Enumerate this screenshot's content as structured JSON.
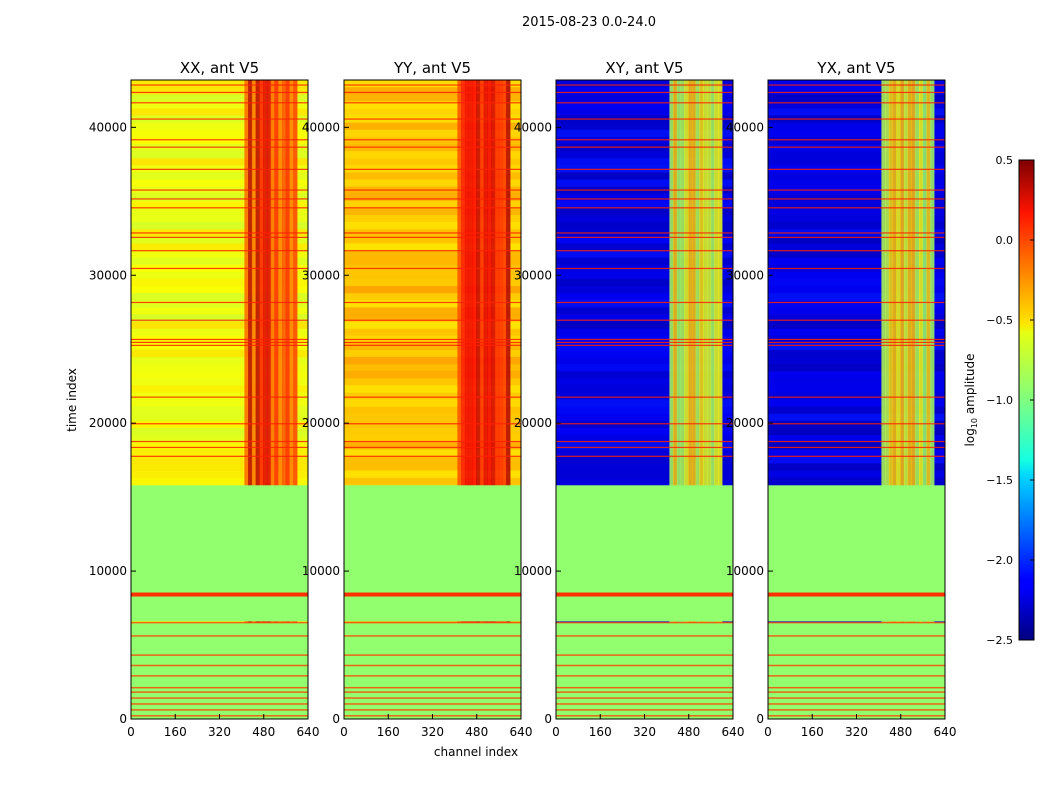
{
  "suptitle": "2015-08-23 0.0-24.0",
  "xlabel": "channel index",
  "ylabel": "time index",
  "colorbar": {
    "label": "log",
    "label_sub": "10",
    "label_rest": " amplitude",
    "min": -2.5,
    "max": 0.5,
    "ticks": [
      "0.5",
      "0.0",
      "−0.5",
      "−1.0",
      "−1.5",
      "−2.0",
      "−2.5"
    ],
    "colormap": "jet"
  },
  "chart_data": [
    {
      "type": "heatmap",
      "title": "XX, ant V5",
      "xlim": [
        0,
        640
      ],
      "ylim": [
        0,
        43200
      ],
      "xticks": [
        "0",
        "160",
        "320",
        "480",
        "640"
      ],
      "yticks": [
        "0",
        "10000",
        "20000",
        "30000",
        "40000"
      ],
      "base_level": -0.65,
      "band_level": 0.05,
      "flagged_level": -0.95,
      "flagged_rows": [
        [
          6600,
          15800
        ]
      ],
      "band_channels": [
        410,
        600
      ]
    },
    {
      "type": "heatmap",
      "title": "YY, ant V5",
      "xlim": [
        0,
        640
      ],
      "ylim": [
        0,
        43200
      ],
      "xticks": [
        "0",
        "160",
        "320",
        "480",
        "640"
      ],
      "yticks": [
        "0",
        "10000",
        "20000",
        "30000",
        "40000"
      ],
      "base_level": -0.45,
      "band_level": 0.1,
      "flagged_level": -0.95,
      "flagged_rows": [
        [
          6600,
          15800
        ]
      ],
      "band_channels": [
        410,
        600
      ]
    },
    {
      "type": "heatmap",
      "title": "XY, ant V5",
      "xlim": [
        0,
        640
      ],
      "ylim": [
        0,
        43200
      ],
      "xticks": [
        "0",
        "160",
        "320",
        "480",
        "640"
      ],
      "yticks": [
        "0",
        "10000",
        "20000",
        "30000",
        "40000"
      ],
      "base_level": -2.2,
      "band_level": -0.7,
      "flagged_level": -0.95,
      "flagged_rows": [
        [
          6600,
          15800
        ]
      ],
      "band_channels": [
        410,
        600
      ]
    },
    {
      "type": "heatmap",
      "title": "YX, ant V5",
      "xlim": [
        0,
        640
      ],
      "ylim": [
        0,
        43200
      ],
      "xticks": [
        "0",
        "160",
        "320",
        "480",
        "640"
      ],
      "yticks": [
        "0",
        "10000",
        "20000",
        "30000",
        "40000"
      ],
      "base_level": -2.2,
      "band_level": -0.7,
      "flagged_level": -0.95,
      "flagged_rows": [
        [
          6600,
          15800
        ]
      ],
      "band_channels": [
        410,
        600
      ]
    }
  ]
}
